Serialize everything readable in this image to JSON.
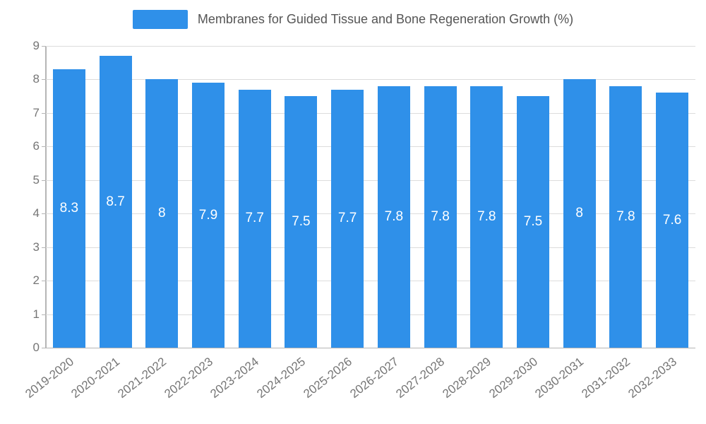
{
  "chart_data": {
    "type": "bar",
    "title": "Membranes for Guided Tissue and Bone Regeneration Growth (%)",
    "categories": [
      "2019-2020",
      "2020-2021",
      "2021-2022",
      "2022-2023",
      "2023-2024",
      "2024-2025",
      "2025-2026",
      "2026-2027",
      "2027-2028",
      "2028-2029",
      "2029-2030",
      "2030-2031",
      "2031-2032",
      "2032-2033"
    ],
    "values": [
      8.3,
      8.7,
      8,
      7.9,
      7.7,
      7.5,
      7.7,
      7.8,
      7.8,
      7.8,
      7.5,
      8,
      7.8,
      7.6
    ],
    "value_labels": [
      "8.3",
      "8.7",
      "8",
      "7.9",
      "7.7",
      "7.5",
      "7.7",
      "7.8",
      "7.8",
      "7.8",
      "7.5",
      "8",
      "7.8",
      "7.6"
    ],
    "xlabel": "",
    "ylabel": "",
    "ylim": [
      0,
      9
    ],
    "ytick_step": 1,
    "ytick_labels": [
      "0",
      "1",
      "2",
      "3",
      "4",
      "5",
      "6",
      "7",
      "8",
      "9"
    ],
    "grid": "horizontal",
    "legend_position": "top",
    "bar_color": "#2f90e9",
    "label_color": "#ffffff",
    "axis_color": "#b5b5b5",
    "grid_color": "#dcdcdc",
    "tick_text_color": "#757575",
    "title_color": "#555555"
  }
}
